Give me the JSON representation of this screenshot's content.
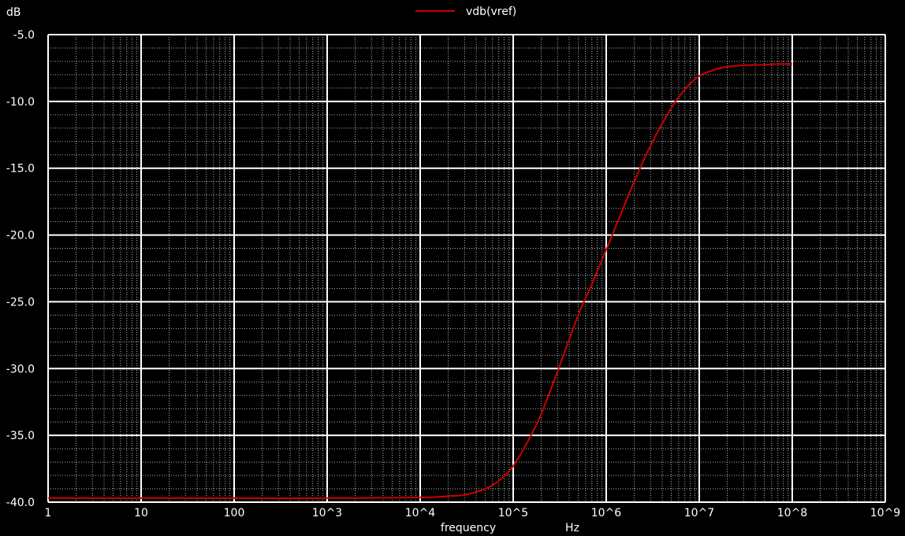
{
  "chart_data": {
    "type": "line",
    "y_unit": "dB",
    "xlabel": "frequency",
    "x_unit": "Hz",
    "x_scale": "log",
    "xlim": [
      1,
      1000000000
    ],
    "ylim": [
      -40.0,
      -5.0
    ],
    "grid": true,
    "legend_position": "top-center",
    "background": "#000000",
    "grid_color": "#ffffff",
    "x_ticks": [
      {
        "value": 1,
        "label": "1"
      },
      {
        "value": 10,
        "label": "10"
      },
      {
        "value": 100,
        "label": "100"
      },
      {
        "value": 1000,
        "label": "10^3"
      },
      {
        "value": 10000,
        "label": "10^4"
      },
      {
        "value": 100000,
        "label": "10^5"
      },
      {
        "value": 1000000,
        "label": "10^6"
      },
      {
        "value": 10000000,
        "label": "10^7"
      },
      {
        "value": 100000000,
        "label": "10^8"
      },
      {
        "value": 1000000000,
        "label": "10^9"
      }
    ],
    "y_ticks": [
      {
        "value": -5.0,
        "label": "-5.0"
      },
      {
        "value": -10.0,
        "label": "-10.0"
      },
      {
        "value": -15.0,
        "label": "-15.0"
      },
      {
        "value": -20.0,
        "label": "-20.0"
      },
      {
        "value": -25.0,
        "label": "-25.0"
      },
      {
        "value": -30.0,
        "label": "-30.0"
      },
      {
        "value": -35.0,
        "label": "-35.0"
      },
      {
        "value": -40.0,
        "label": "-40.0"
      }
    ],
    "series": [
      {
        "name": "vdb(vref)",
        "color": "#cc0000",
        "x": [
          1,
          10,
          100,
          1000,
          10000,
          20000,
          30000,
          50000,
          70000,
          100000,
          150000,
          200000,
          300000,
          500000,
          700000,
          1000000,
          1500000,
          2000000,
          3000000,
          5000000,
          7000000,
          10000000,
          15000000,
          20000000,
          30000000,
          50000000,
          70000000,
          100000000
        ],
        "y": [
          -39.7,
          -39.7,
          -39.7,
          -39.7,
          -39.65,
          -39.55,
          -39.45,
          -39.0,
          -38.4,
          -37.3,
          -35.2,
          -33.4,
          -30.2,
          -26.0,
          -23.7,
          -21.1,
          -18.1,
          -16.0,
          -13.3,
          -10.5,
          -9.1,
          -8.1,
          -7.6,
          -7.4,
          -7.3,
          -7.25,
          -7.2,
          -7.2
        ]
      }
    ]
  }
}
